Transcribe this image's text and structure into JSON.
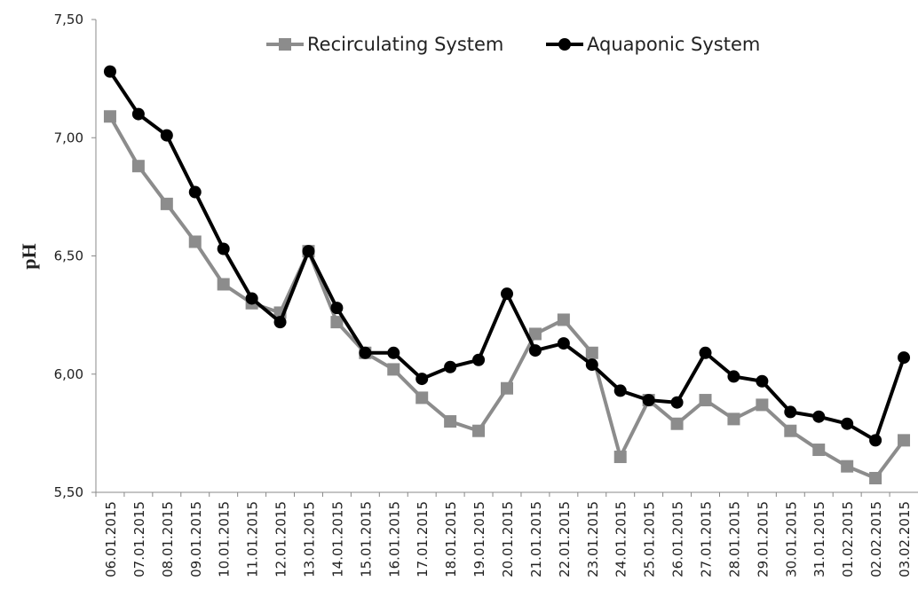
{
  "chart_data": {
    "type": "line",
    "y_label": "pH",
    "categories": [
      "06.01.2015",
      "07.01.2015",
      "08.01.2015",
      "09.01.2015",
      "10.01.2015",
      "11.01.2015",
      "12.01.2015",
      "13.01.2015",
      "14.01.2015",
      "15.01.2015",
      "16.01.2015",
      "17.01.2015",
      "18.01.2015",
      "19.01.2015",
      "20.01.2015",
      "21.01.2015",
      "22.01.2015",
      "23.01.2015",
      "24.01.2015",
      "25.01.2015",
      "26.01.2015",
      "27.01.2015",
      "28.01.2015",
      "29.01.2015",
      "30.01.2015",
      "31.01.2015",
      "01.02.2015",
      "02.02.2015",
      "03.02.2015"
    ],
    "series": [
      {
        "name": "Recirculating System",
        "color": "#8c8c8c",
        "marker": "square",
        "values": [
          7.09,
          6.88,
          6.72,
          6.56,
          6.38,
          6.3,
          6.26,
          6.52,
          6.22,
          6.09,
          6.02,
          5.9,
          5.8,
          5.76,
          5.94,
          6.17,
          6.23,
          6.09,
          5.65,
          5.89,
          5.79,
          5.89,
          5.81,
          5.87,
          5.76,
          5.68,
          5.61,
          5.56,
          5.72
        ]
      },
      {
        "name": "Aquaponic System",
        "color": "#000000",
        "marker": "circle",
        "values": [
          7.28,
          7.1,
          7.01,
          6.77,
          6.53,
          6.32,
          6.22,
          6.52,
          6.28,
          6.09,
          6.09,
          5.98,
          6.03,
          6.06,
          6.34,
          6.1,
          6.13,
          6.04,
          5.93,
          5.89,
          5.88,
          6.09,
          5.99,
          5.97,
          5.84,
          5.82,
          5.79,
          5.72,
          6.07
        ]
      }
    ],
    "ylim": [
      5.5,
      7.5
    ],
    "yticks": [
      {
        "value": 5.5,
        "label": "5,50"
      },
      {
        "value": 6.0,
        "label": "6,00"
      },
      {
        "value": 6.5,
        "label": "6,50"
      },
      {
        "value": 7.0,
        "label": "7,00"
      },
      {
        "value": 7.5,
        "label": "7,50"
      }
    ],
    "grid": false,
    "legend": "top"
  }
}
